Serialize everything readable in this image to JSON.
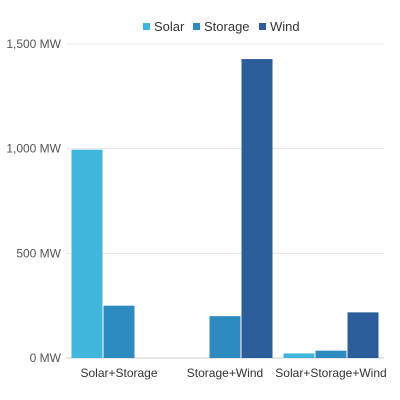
{
  "chart_data": {
    "type": "bar",
    "categories": [
      "Solar+Storage",
      "Storage+Wind",
      "Solar+Storage+Wind"
    ],
    "series": [
      {
        "name": "Solar",
        "color": "#41b6dc",
        "values": [
          995,
          0,
          22
        ]
      },
      {
        "name": "Storage",
        "color": "#2e8bc0",
        "values": [
          250,
          200,
          35
        ]
      },
      {
        "name": "Wind",
        "color": "#2b5d9b",
        "values": [
          0,
          1428,
          218
        ]
      }
    ],
    "yticks": [
      "0 MW",
      "500 MW",
      "1,000 MW",
      "1,500 MW"
    ],
    "ytick_values": [
      0,
      500,
      1000,
      1500
    ],
    "ylim": [
      0,
      1500
    ],
    "grid": true,
    "legend_position": "top"
  }
}
